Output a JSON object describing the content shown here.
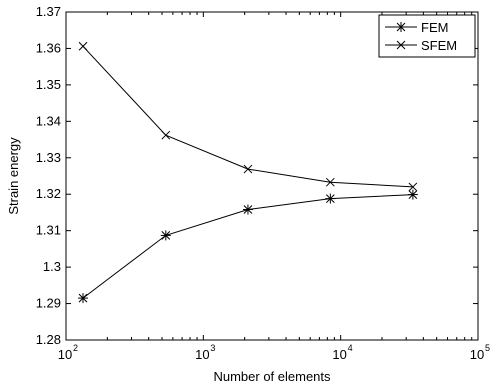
{
  "chart_data": {
    "type": "line",
    "xlabel": "Number of elements",
    "ylabel": "Strain energy",
    "xscale": "log",
    "xlim": [
      100,
      100000
    ],
    "ylim": [
      1.28,
      1.37
    ],
    "grid": false,
    "legend_position": "top-right",
    "x_ticks": [
      {
        "value": 100,
        "base": "10",
        "exp": "2"
      },
      {
        "value": 1000,
        "base": "10",
        "exp": "3"
      },
      {
        "value": 10000,
        "base": "10",
        "exp": "4"
      },
      {
        "value": 100000,
        "base": "10",
        "exp": "5"
      }
    ],
    "y_ticks": [
      {
        "value": 1.28,
        "label": "1.28"
      },
      {
        "value": 1.29,
        "label": "1.29"
      },
      {
        "value": 1.3,
        "label": "1.3"
      },
      {
        "value": 1.31,
        "label": "1.31"
      },
      {
        "value": 1.32,
        "label": "1.32"
      },
      {
        "value": 1.33,
        "label": "1.33"
      },
      {
        "value": 1.34,
        "label": "1.34"
      },
      {
        "value": 1.35,
        "label": "1.35"
      },
      {
        "value": 1.36,
        "label": "1.36"
      },
      {
        "value": 1.37,
        "label": "1.37"
      }
    ],
    "series": [
      {
        "name": "FEM",
        "marker": "asterisk",
        "color": "#000000",
        "x": [
          133,
          533,
          2113,
          8411,
          33570
        ],
        "y": [
          1.2915,
          1.3087,
          1.3158,
          1.3188,
          1.3199
        ]
      },
      {
        "name": "SFEM",
        "marker": "x",
        "color": "#000000",
        "x": [
          133,
          533,
          2113,
          8411,
          33570
        ],
        "y": [
          1.3606,
          1.3362,
          1.3269,
          1.3233,
          1.322
        ]
      }
    ]
  }
}
